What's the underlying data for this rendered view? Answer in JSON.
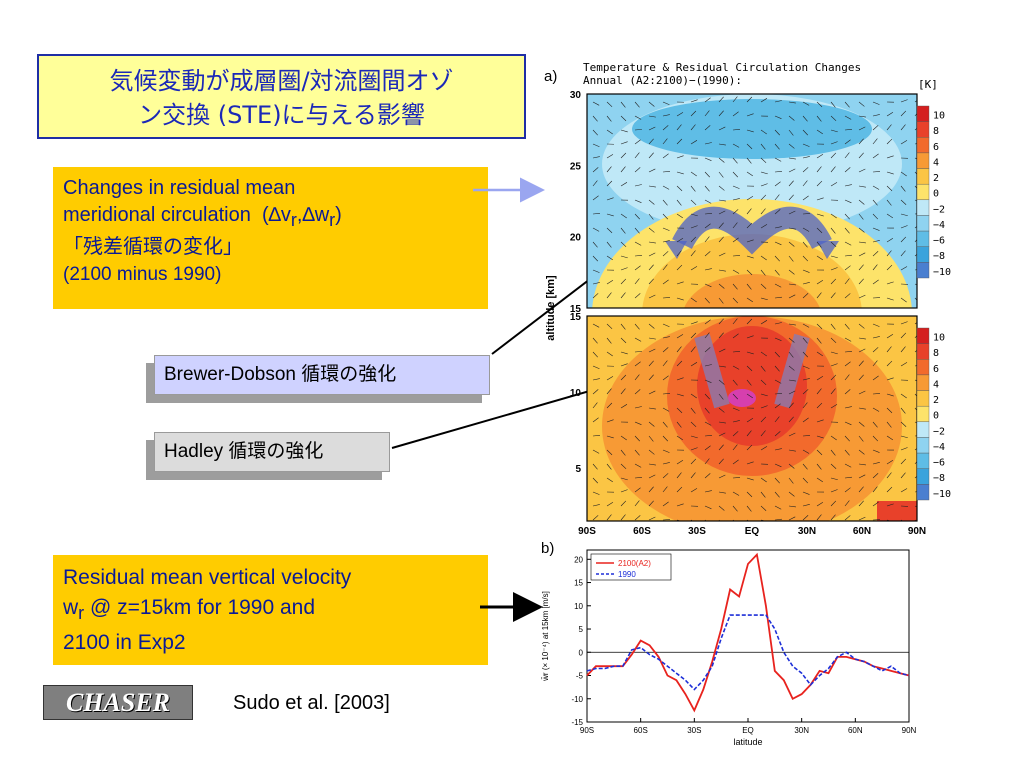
{
  "title": {
    "line1": "気候変動が成層圏/対流圏間オゾ",
    "line2": "ン交換 (STE)に与える影響"
  },
  "changes_box": {
    "line1": "Changes in residual mean",
    "line2": "meridional circulation",
    "line2_vars": "(∆v",
    "line2_sub1": "r",
    "line2_mid": ",∆w",
    "line2_sub2": "r",
    "line2_end": ")",
    "line3": "「残差循環の変化」",
    "line4": "(2100 minus 1990)"
  },
  "brewer_dobson_label": "Brewer-Dobson 循環の強化",
  "hadley_label": "Hadley 循環の強化",
  "residual_box": {
    "line1": "Residual mean vertical velocity",
    "line2_a": "w",
    "line2_sub": "r",
    "line2_b": " @ z=15km for 1990 and",
    "line3": "2100 in Exp2"
  },
  "logo_text": "CHASER",
  "citation": "Sudo et al. [2003]",
  "figure_a": {
    "letter": "a)",
    "title_line1": "Temperature & Residual Circulation Changes",
    "title_line2": "Annual (A2:2100)−(1990):",
    "unit": "[K]",
    "y_axis_label": "altitude [km]",
    "upper_y_ticks": [
      "30",
      "25",
      "20",
      "15"
    ],
    "lower_y_ticks": [
      "15",
      "10",
      "5"
    ],
    "x_ticks": [
      "90S",
      "60S",
      "30S",
      "EQ",
      "30N",
      "60N",
      "90N"
    ],
    "colorbar_labels": [
      "10",
      "8",
      "6",
      "4",
      "2",
      "0",
      "−2",
      "−4",
      "−6",
      "−8",
      "−10"
    ],
    "colorbar_colors": [
      "#d41f1f",
      "#e8412a",
      "#f26a2c",
      "#f79a35",
      "#fbc544",
      "#fde36a",
      "#bfe8f7",
      "#8fd3f0",
      "#5fbde6",
      "#3aa3dc",
      "#4a7fd0"
    ]
  },
  "figure_b": {
    "letter": "b)",
    "y_axis_label": "w̄r (× 10⁻⁴) at 15km [m/s]",
    "x_axis_label": "latitude",
    "chart_data": {
      "type": "line",
      "xlabel": "latitude",
      "ylabel": "w̄r (× 10⁻⁴) at 15km [m/s]",
      "x_ticks": [
        "90S",
        "60S",
        "30S",
        "EQ",
        "30N",
        "60N",
        "90N"
      ],
      "y_ticks": [
        "20",
        "15",
        "10",
        "5",
        "0",
        "-5",
        "-10",
        "-15"
      ],
      "xlim": [
        -90,
        90
      ],
      "ylim": [
        -15,
        22
      ],
      "legend_position": "top-left",
      "series": [
        {
          "name": "2100(A2)",
          "color": "#e8231e",
          "style": "solid",
          "x": [
            -90,
            -85,
            -80,
            -75,
            -70,
            -65,
            -60,
            -55,
            -50,
            -45,
            -40,
            -35,
            -30,
            -25,
            -20,
            -15,
            -10,
            -5,
            0,
            5,
            10,
            15,
            20,
            25,
            30,
            35,
            40,
            45,
            50,
            55,
            60,
            65,
            70,
            75,
            80,
            85,
            90
          ],
          "y": [
            -5,
            -3,
            -3,
            -3,
            -3,
            -0.5,
            2.5,
            1.5,
            -1,
            -5,
            -6,
            -9,
            -12.5,
            -8,
            -2,
            5,
            13.5,
            12,
            19,
            21,
            10,
            -4,
            -6,
            -10,
            -9,
            -7,
            -4,
            -4.5,
            -1,
            -1,
            -1.5,
            -2,
            -3,
            -3.5,
            -4,
            -4.5,
            -5
          ]
        },
        {
          "name": "1990",
          "color": "#1d2fd8",
          "style": "dashed",
          "x": [
            -90,
            -85,
            -80,
            -75,
            -70,
            -65,
            -60,
            -55,
            -50,
            -45,
            -40,
            -35,
            -30,
            -25,
            -20,
            -15,
            -10,
            -5,
            0,
            5,
            10,
            15,
            20,
            25,
            30,
            35,
            40,
            45,
            50,
            55,
            60,
            65,
            70,
            75,
            80,
            85,
            90
          ],
          "y": [
            -4,
            -3.5,
            -3.5,
            -3,
            -3,
            0.5,
            1,
            -0.5,
            -1.5,
            -3,
            -4.5,
            -6,
            -8,
            -6,
            -3,
            3,
            8,
            8,
            8,
            8,
            8,
            5,
            0,
            -3,
            -4.5,
            -7,
            -5,
            -3.5,
            -1,
            0,
            -1.5,
            -2,
            -3,
            -4,
            -3,
            -4.5,
            -5
          ]
        }
      ]
    }
  }
}
